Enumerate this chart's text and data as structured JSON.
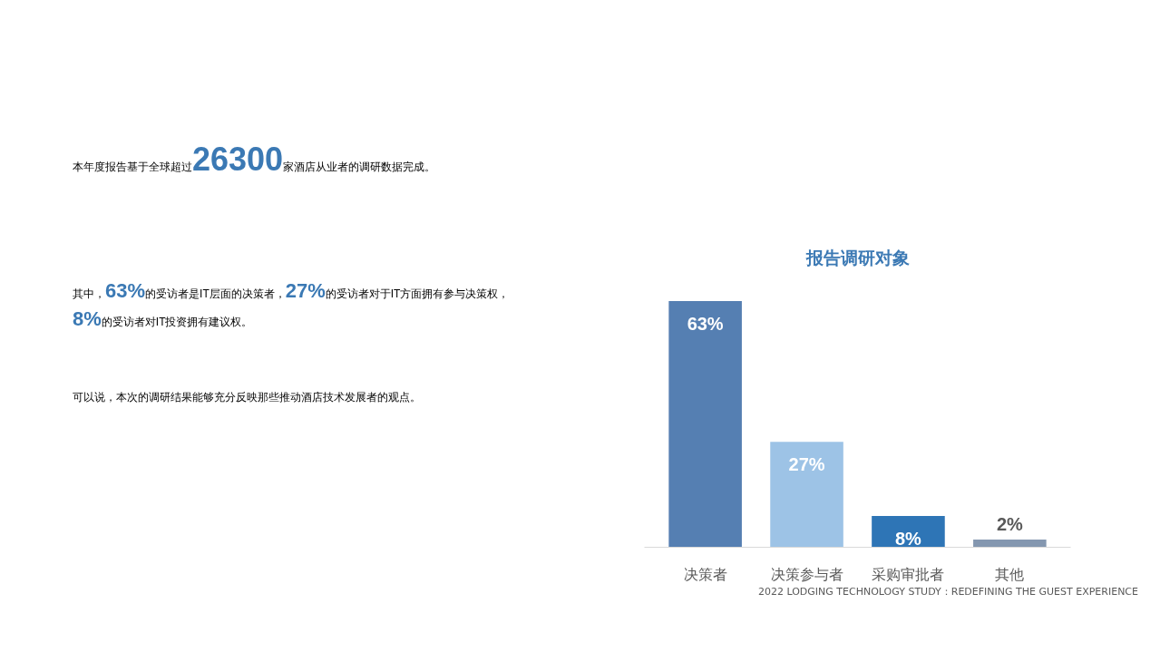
{
  "chart_data": {
    "type": "bar",
    "title": "报告调研对象",
    "categories": [
      "决策者",
      "决策参与者",
      "采购审批者",
      "其他"
    ],
    "values": [
      63,
      27,
      8,
      2
    ],
    "colors": [
      "#557fb2",
      "#9dc3e6",
      "#2e75b6",
      "#8497b0"
    ],
    "value_labels": [
      "63%",
      "27%",
      "8%",
      "2%"
    ],
    "grid": false,
    "annotations": [
      "本年度报告基于全球超过26300家酒店从业者的调研数据完成。",
      "其中，63%的受访者是IT层面的决策者，27%的受访者对于IT方面拥有参与决策权，8%的受访者对IT投资拥有建议权。",
      "可以说，本次的调研结果能够充分反映那些推动酒店技术发展者的观点。",
      "2022 LODGING TECHNOLOGY STUDY：REDEFINING THE GUEST EXPERIENCE"
    ]
  }
}
